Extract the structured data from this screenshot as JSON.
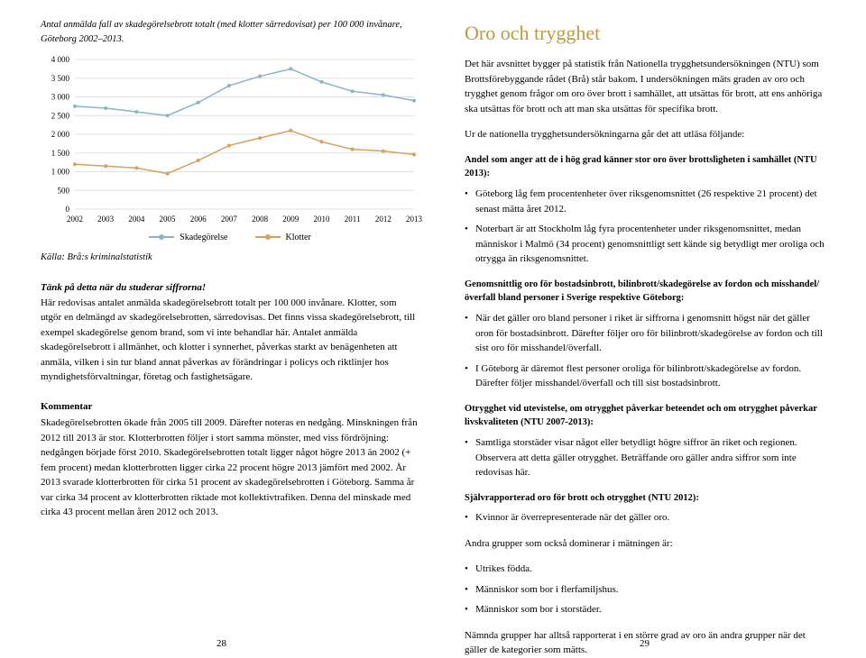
{
  "leftCol": {
    "chartTitle": "Antal anmälda fall av skadegörelsebrott totalt (med klotter särredovisat) per 100 000 invånare, Göteborg 2002–2013.",
    "chart": {
      "type": "line",
      "years": [
        "2002",
        "2003",
        "2004",
        "2005",
        "2006",
        "2007",
        "2008",
        "2009",
        "2010",
        "2011",
        "2012",
        "2013"
      ],
      "yTicks": [
        0,
        500,
        1000,
        1500,
        2000,
        2500,
        3000,
        3500,
        4000
      ],
      "yLabels": [
        "0",
        "500",
        "1 000",
        "1 500",
        "2 000",
        "2 500",
        "3 000",
        "3 500",
        "4 000"
      ],
      "ylim": [
        0,
        4000
      ],
      "series": [
        {
          "name": "Skadegörelse",
          "color": "#8ab4c8",
          "values": [
            2750,
            2700,
            2600,
            2500,
            2850,
            3300,
            3550,
            3750,
            3400,
            3150,
            3050,
            2900
          ]
        },
        {
          "name": "Klotter",
          "color": "#d9a05b",
          "values": [
            1200,
            1150,
            1100,
            950,
            1300,
            1700,
            1900,
            2100,
            1800,
            1600,
            1550,
            1460
          ]
        }
      ],
      "gridColor": "#e0e0e0",
      "bg": "#ffffff",
      "axisFont": 9,
      "markerR": 2,
      "lineW": 1.5
    },
    "source": "Källa: Brå:s kriminalstatistik",
    "thinkHead": "Tänk på detta när du studerar siffrorna!",
    "thinkBody": "Här redovisas antalet anmälda skadegörelsebrott totalt per 100 000 invånare. Klotter, som utgör en delmängd av skadegörelsebrotten, särredovisas. Det finns vissa skadegörelsebrott, till exempel skadegörelse genom brand, som vi inte behandlar här. Antalet anmälda skadegörelsebrott i allmänhet, och klotter i synnerhet, påverkas starkt av benägenheten att anmäla, vilken i sin tur bland annat påverkas av förändringar i policys och riktlinjer hos myndighetsförvaltningar, företag och fastighetsägare.",
    "commentHead": "Kommentar",
    "commentBody": "Skadegörelsebrotten ökade från 2005 till 2009. Därefter noteras en nedgång. Minskningen från 2012 till 2013 är stor. Klotterbrotten följer i stort samma mönster, med viss fördröjning: nedgången började först 2010. Skadegörelsebrotten totalt ligger något högre 2013 än 2002 (+ fem procent) medan klotterbrotten ligger cirka 22 procent högre 2013 jämfört med 2002. År 2013 svarade klotterbrotten för cirka 51 procent av skadegörelsebrotten i Göteborg. Samma år var cirka 34 procent av klotterbrotten riktade mot kollektivtrafiken. Denna del minskade med cirka 43 procent mellan åren 2012 och 2013.",
    "pageNum": "28"
  },
  "rightCol": {
    "title": "Oro och trygghet",
    "intro1": "Det här avsnittet bygger på statistik från Nationella trygghetsundersökningen (NTU) som Brottsförebyggande rådet (Brå) står bakom. I undersökningen mäts graden av oro och trygghet genom frågor om oro över brott i samhället, att utsättas för brott, att ens anhöriga ska utsättas för brott och att man ska utsättas för specifika brott.",
    "intro2": "Ur de nationella trygghetsundersökningarna går det att utläsa följande:",
    "block1Head": "Andel som anger att de i hög grad känner stor oro över brottsligheten i samhället (NTU 2013):",
    "block1": [
      "Göteborg låg fem procentenheter över riksgenomsnittet (26 respektive 21 procent) det senast mätta året 2012.",
      "Noterbart är att Stockholm låg fyra procentenheter under riksgenomsnittet, medan människor i Malmö (34 procent) genomsnittligt sett kände sig betydligt mer oroliga och otrygga än riksgenomsnittet."
    ],
    "block2Head": "Genomsnittlig oro för bostadsinbrott, bilinbrott/skadegörelse av fordon och misshandel/överfall bland personer i Sverige respektive Göteborg:",
    "block2": [
      "När det gäller oro bland personer i riket är siffrorna i genomsnitt högst när det gäller oron för bostadsinbrott. Därefter följer oro för bilinbrott/skadegörelse av fordon och till sist oro för misshandel/överfall.",
      "I Göteborg är däremot flest personer oroliga för bilinbrott/skadegörelse av fordon. Därefter följer misshandel/överfall och till sist bostadsinbrott."
    ],
    "block3Head": "Otrygghet vid utevistelse, om otrygghet påverkar beteendet och om otrygghet påverkar livskvaliteten (NTU 2007-2013):",
    "block3": [
      "Samtliga storstäder visar något eller betydligt högre siffror än riket och regionen. Observera att detta gäller otrygghet. Beträffande oro gäller andra siffror som inte redovisas här."
    ],
    "block4Head": "Självrapporterad oro för brott och otrygghet (NTU 2012):",
    "block4": [
      "Kvinnor är överrepresenterade när det gäller oro."
    ],
    "otherLine": "Andra grupper som också dominerar i mätningen är:",
    "otherList": [
      "Utrikes födda.",
      "Människor som bor i flerfamiljshus.",
      "Människor som bor i storstäder."
    ],
    "closing": "Nämnda grupper har alltså rapporterat i en större grad av oro än andra grupper när det gäller de kategorier som mätts.",
    "pageNum": "29"
  }
}
